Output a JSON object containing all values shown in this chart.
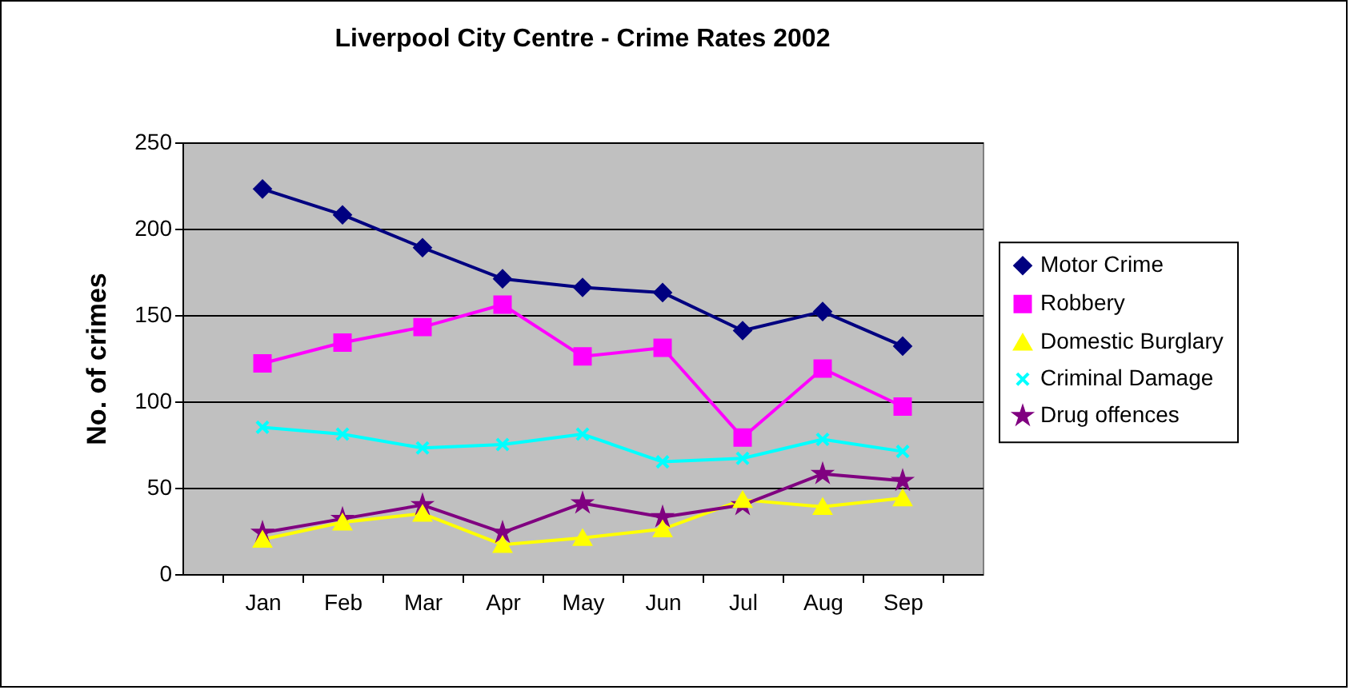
{
  "chart_data": {
    "type": "line",
    "title": "Liverpool City Centre - Crime Rates 2002",
    "ylabel": "No. of crimes",
    "categories": [
      "Jan",
      "Feb",
      "Mar",
      "Apr",
      "May",
      "Jun",
      "Jul",
      "Aug",
      "Sep"
    ],
    "ylim": [
      0,
      250
    ],
    "yticks": [
      0,
      50,
      100,
      150,
      200,
      250
    ],
    "grid": "y",
    "legend": "right",
    "series": [
      {
        "name": "Motor Crime",
        "color": "#000080",
        "marker": "diamond",
        "values": [
          223,
          208,
          189,
          171,
          166,
          163,
          141,
          152,
          132
        ]
      },
      {
        "name": "Robbery",
        "color": "#ff00ff",
        "marker": "square",
        "values": [
          122,
          134,
          143,
          156,
          126,
          131,
          79,
          119,
          97
        ]
      },
      {
        "name": "Domestic Burglary",
        "color": "#ffff00",
        "marker": "triangle",
        "values": [
          20,
          30,
          35,
          17,
          21,
          26,
          43,
          39,
          44
        ]
      },
      {
        "name": "Criminal Damage",
        "color": "#00ffff",
        "marker": "cross",
        "values": [
          85,
          81,
          73,
          75,
          81,
          65,
          67,
          78,
          71
        ]
      },
      {
        "name": "Drug offences",
        "color": "#800080",
        "marker": "star",
        "values": [
          24,
          32,
          40,
          24,
          41,
          33,
          40,
          58,
          54
        ]
      }
    ]
  }
}
